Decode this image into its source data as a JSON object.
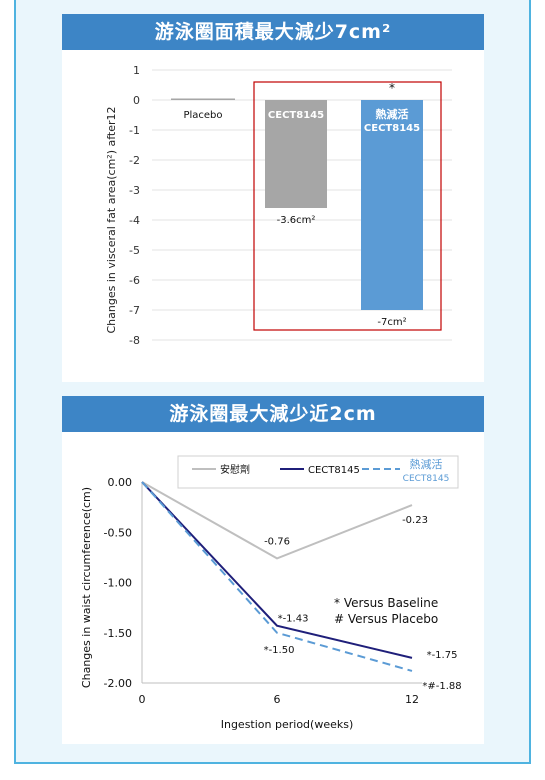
{
  "chart_data": [
    {
      "type": "bar",
      "title": "游泳圈面積最大減少7cm²",
      "ylabel": "Changes in visceral fat area(cm²) after12",
      "ylim": [
        -8,
        1
      ],
      "yticks": [
        1,
        0,
        -1,
        -2,
        -3,
        -4,
        -5,
        -6,
        -7,
        -8
      ],
      "grid": true,
      "categories": [
        "Placebo",
        "CECT8145",
        "熱減活\nCECT8145"
      ],
      "values": [
        0.05,
        -3.6,
        -7
      ],
      "data_labels": [
        "",
        "-3.6cm²",
        "-7cm²"
      ],
      "colors": [
        "#a6a6a6",
        "#a6a6a6",
        "#5b9bd5"
      ],
      "annotation": "*",
      "highlight_box_color": "#c00000"
    },
    {
      "type": "line",
      "title": "游泳圈最大減少近2cm",
      "xlabel": "Ingestion period(weeks)",
      "ylabel": "Changes in waist circumference(cm)",
      "x": [
        0,
        6,
        12
      ],
      "xlim": [
        0,
        12
      ],
      "ylim": [
        -2.0,
        0.0
      ],
      "yticks": [
        "0.00",
        "-0.50",
        "-1.00",
        "-1.50",
        "-2.00"
      ],
      "xticks": [
        "0",
        "6",
        "12"
      ],
      "series": [
        {
          "name": "安慰劑",
          "values": [
            0,
            -0.76,
            -0.23
          ],
          "labels": [
            "",
            "-0.76",
            "-0.23"
          ],
          "color": "#bfbfbf",
          "dash": "solid"
        },
        {
          "name": "CECT8145",
          "values": [
            0,
            -1.43,
            -1.75
          ],
          "labels": [
            "",
            "*-1.43",
            "*-1.75"
          ],
          "color": "#1f1f7a",
          "dash": "solid"
        },
        {
          "name": "熱減活",
          "name_sub": "CECT8145",
          "values": [
            0,
            -1.5,
            -1.88
          ],
          "labels": [
            "",
            "*-1.50",
            "*#-1.88"
          ],
          "color": "#5b9bd5",
          "dash": "dashed"
        }
      ],
      "notes": [
        "* Versus Baseline",
        "# Versus Placebo"
      ],
      "legend": "top"
    }
  ]
}
